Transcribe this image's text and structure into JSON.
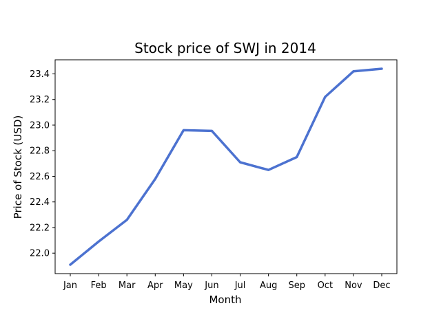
{
  "chart_data": {
    "type": "line",
    "title": "Stock price of SWJ in 2014",
    "xlabel": "Month",
    "ylabel": "Price of Stock (USD)",
    "categories": [
      "Jan",
      "Feb",
      "Mar",
      "Apr",
      "May",
      "Jun",
      "Jul",
      "Aug",
      "Sep",
      "Oct",
      "Nov",
      "Dec"
    ],
    "series": [
      {
        "values": [
          21.91,
          22.09,
          22.26,
          22.58,
          22.96,
          22.955,
          22.71,
          22.65,
          22.75,
          23.22,
          23.42,
          23.44
        ],
        "color": "#4c72d0"
      }
    ],
    "yticks": [
      "22.0",
      "22.2",
      "22.4",
      "22.6",
      "22.8",
      "23.0",
      "23.2",
      "23.4"
    ],
    "ylim": [
      21.84,
      23.51
    ],
    "grid": false,
    "legend": "none"
  }
}
